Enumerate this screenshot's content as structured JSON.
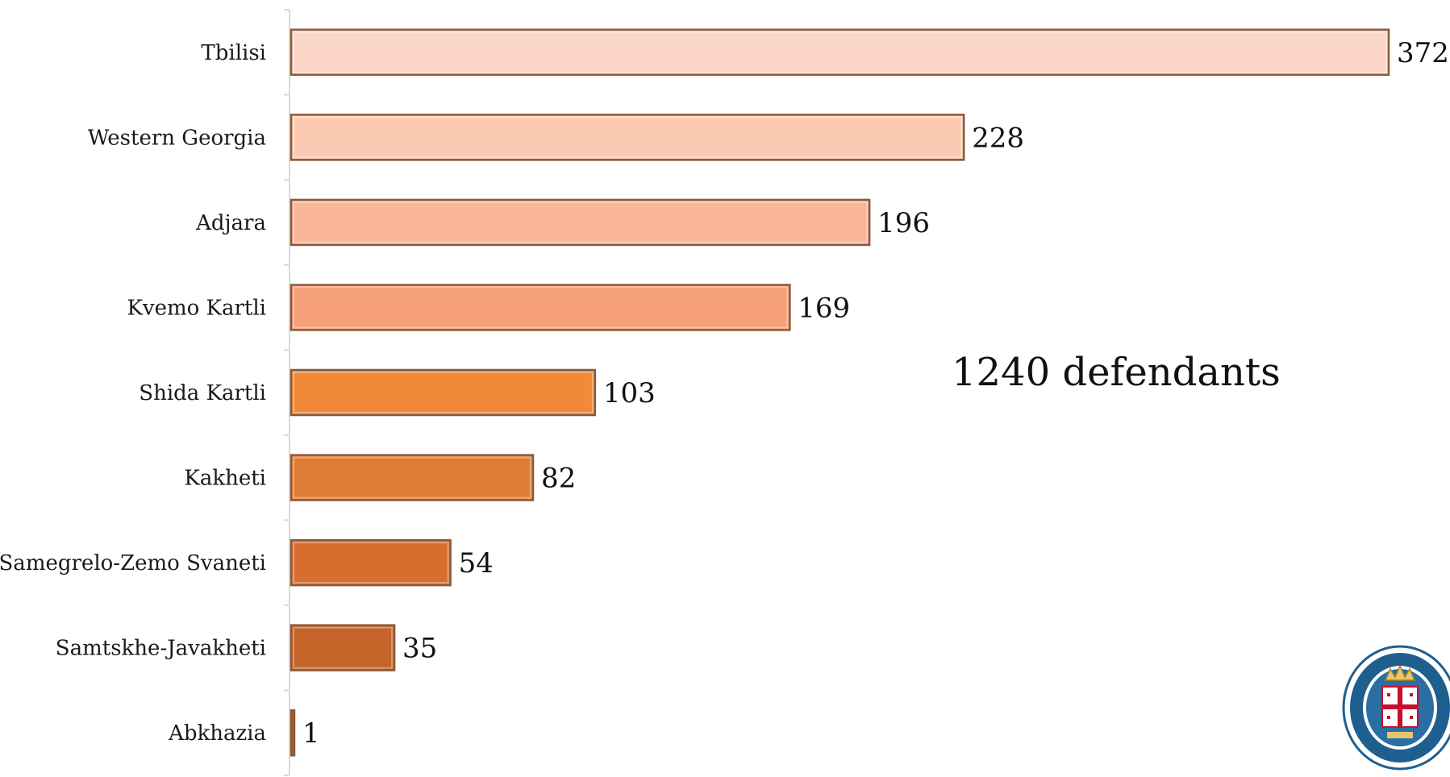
{
  "chart_data": {
    "type": "bar",
    "orientation": "horizontal",
    "categories": [
      "Tbilisi",
      "Western Georgia",
      "Adjara",
      "Kvemo Kartli",
      "Shida Kartli",
      "Kakheti",
      "Samegrelo-Zemo Svaneti",
      "Samtskhe-Javakheti",
      "Abkhazia"
    ],
    "values": [
      372,
      228,
      196,
      169,
      103,
      82,
      54,
      35,
      1
    ],
    "xlim": [
      0,
      372
    ],
    "grid": false,
    "legend": "none",
    "colors": [
      "#fbd6c6",
      "#fccab2",
      "#f9b69a",
      "#f5a079",
      "#f0893a",
      "#e07b35",
      "#d56e2e",
      "#c46428",
      "#b0581f"
    ],
    "annotation": "1240 defendants"
  },
  "logo": {
    "name": "prosecutor-office-seal-icon",
    "colors": {
      "ring": "#1f5f8f",
      "inner": "#2a6fa3",
      "crown": "#e9c46a",
      "cross": "#c8102e"
    }
  }
}
